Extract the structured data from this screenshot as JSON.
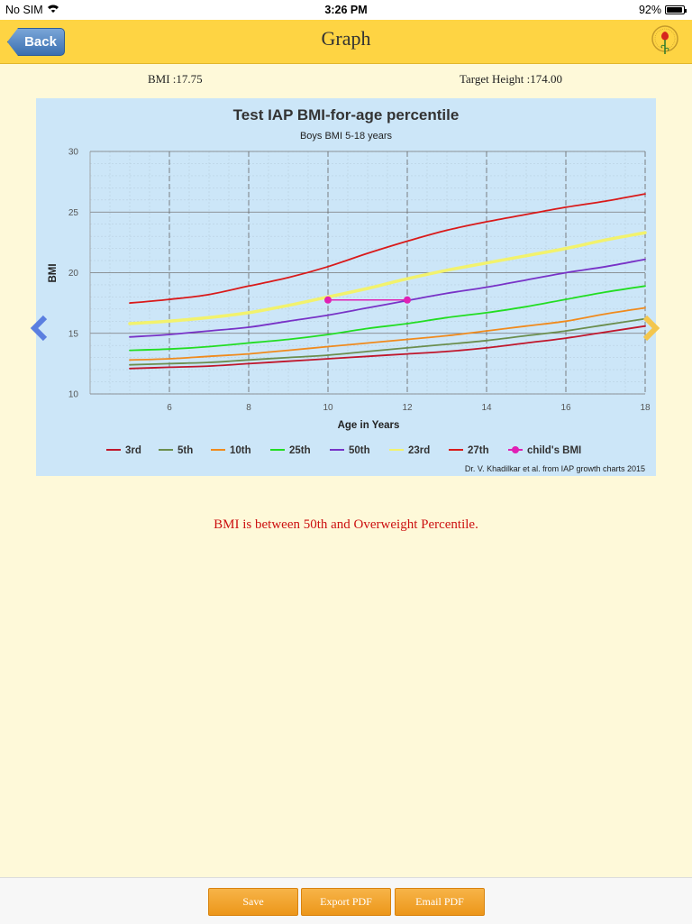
{
  "status_bar": {
    "carrier": "No SIM",
    "time": "3:26 PM",
    "battery": "92%",
    "battery_level": 0.92
  },
  "nav": {
    "back_label": "Back",
    "title": "Graph"
  },
  "info": {
    "bmi_label": "BMI :17.75",
    "target_height_label": "Target Height :174.00"
  },
  "chart_data": {
    "type": "line",
    "title": "Test IAP BMI-for-age percentile",
    "subtitle": "Boys BMI 5-18 years",
    "xlabel": "Age in Years",
    "ylabel": "BMI",
    "xlim": [
      4,
      18
    ],
    "ylim": [
      10,
      30
    ],
    "x_ticks": [
      "6",
      "8",
      "10",
      "12",
      "14",
      "16",
      "18"
    ],
    "y_ticks": [
      "10",
      "15",
      "20",
      "25",
      "30"
    ],
    "grid": true,
    "legend_position": "bottom",
    "credit": "Dr. V. Khadilkar et al. from IAP growth charts 2015",
    "x": [
      5,
      6,
      7,
      8,
      9,
      10,
      11,
      12,
      13,
      14,
      15,
      16,
      17,
      18
    ],
    "series": [
      {
        "name": "3rd",
        "color": "#c0172c",
        "width": 1.8,
        "values": [
          12.1,
          12.2,
          12.3,
          12.5,
          12.7,
          12.9,
          13.1,
          13.3,
          13.5,
          13.8,
          14.2,
          14.6,
          15.1,
          15.6
        ]
      },
      {
        "name": "5th",
        "color": "#6b8e4e",
        "width": 1.8,
        "values": [
          12.4,
          12.5,
          12.6,
          12.8,
          13.0,
          13.2,
          13.5,
          13.8,
          14.1,
          14.4,
          14.8,
          15.2,
          15.7,
          16.2
        ]
      },
      {
        "name": "10th",
        "color": "#f08a1d",
        "width": 1.8,
        "values": [
          12.8,
          12.9,
          13.1,
          13.3,
          13.6,
          13.9,
          14.2,
          14.5,
          14.8,
          15.2,
          15.6,
          16.0,
          16.6,
          17.1
        ]
      },
      {
        "name": "25th",
        "color": "#22dd22",
        "width": 1.8,
        "values": [
          13.6,
          13.7,
          13.9,
          14.2,
          14.5,
          14.9,
          15.4,
          15.8,
          16.3,
          16.7,
          17.2,
          17.8,
          18.4,
          18.9
        ]
      },
      {
        "name": "50th",
        "color": "#7833c7",
        "width": 1.8,
        "values": [
          14.7,
          14.9,
          15.2,
          15.5,
          16.0,
          16.5,
          17.1,
          17.7,
          18.3,
          18.8,
          19.4,
          20.0,
          20.5,
          21.1
        ]
      },
      {
        "name": "23rd",
        "color": "#f2f26d",
        "width": 3.5,
        "values": [
          15.8,
          16.0,
          16.3,
          16.7,
          17.3,
          18.0,
          18.7,
          19.5,
          20.2,
          20.8,
          21.4,
          22.0,
          22.7,
          23.3
        ]
      },
      {
        "name": "27th",
        "color": "#d91a1a",
        "width": 1.8,
        "values": [
          17.5,
          17.8,
          18.2,
          18.9,
          19.6,
          20.5,
          21.6,
          22.6,
          23.5,
          24.2,
          24.8,
          25.4,
          25.9,
          26.5
        ]
      }
    ],
    "child_bmi": {
      "name": "child's BMI",
      "color": "#e020b4",
      "x": [
        10,
        12
      ],
      "y": [
        17.75,
        17.75
      ]
    }
  },
  "result_message": "BMI is between 50th and Overweight Percentile.",
  "buttons": {
    "save": "Save",
    "export_pdf": "Export PDF",
    "email_pdf": "Email PDF"
  }
}
